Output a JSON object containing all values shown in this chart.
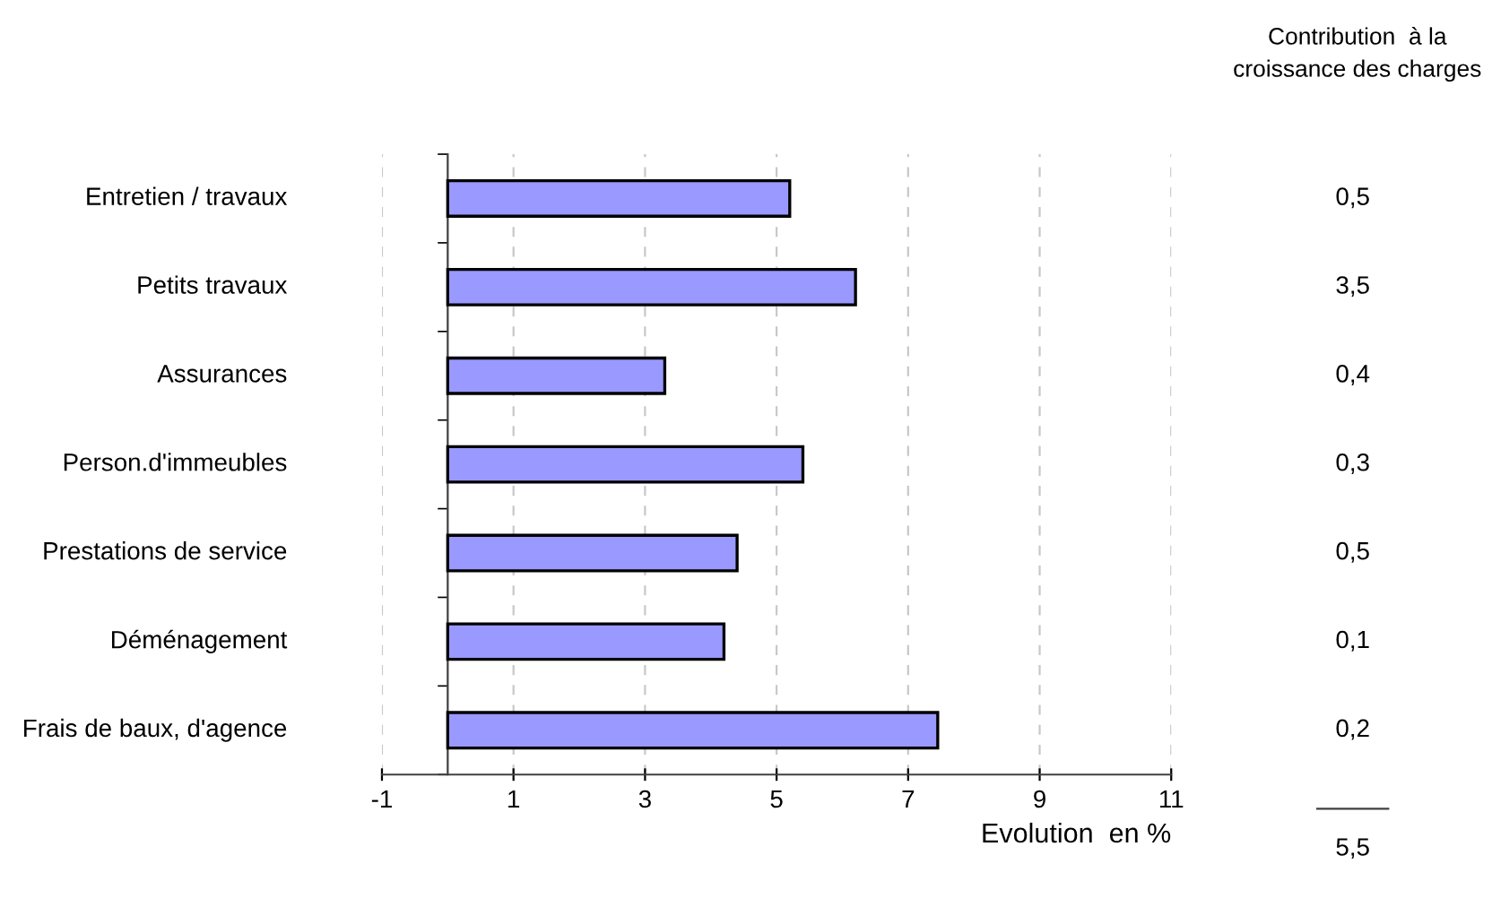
{
  "chart_data": {
    "type": "bar",
    "orientation": "horizontal",
    "categories": [
      "Entretien / travaux",
      "Petits travaux",
      "Assurances",
      "Person.d'immeubles",
      "Prestations de service",
      "Déménagement",
      "Frais de baux, d'agence"
    ],
    "values": [
      5.2,
      6.2,
      3.3,
      5.4,
      4.4,
      4.2,
      7.45
    ],
    "color": "#9999ff",
    "xlabel": "Evolution  en %",
    "xlim": [
      -1,
      11
    ],
    "xticks": [
      -1,
      1,
      3,
      5,
      7,
      9,
      11
    ],
    "grid": "x",
    "line_style": "dashed",
    "annotations": [
      "Contribution  à la\ncroissance des charges",
      "0,5",
      "3,5",
      "0,4",
      "0,3",
      "0,5",
      "0,1",
      "0,2",
      "5,5"
    ]
  }
}
